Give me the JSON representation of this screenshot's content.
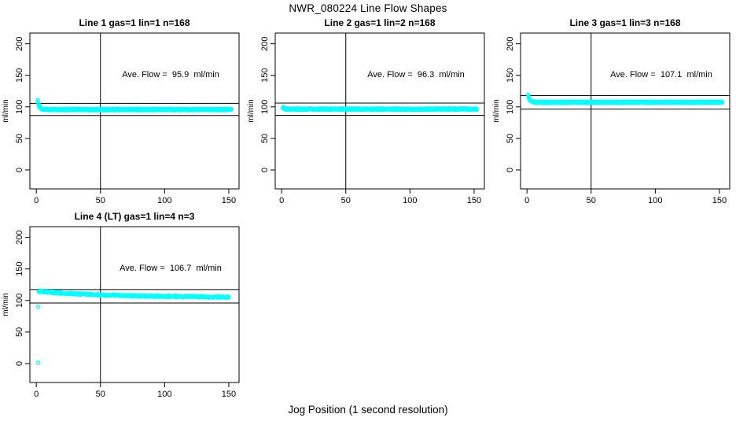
{
  "figure": {
    "title": "NWR_080224  Line Flow Shapes",
    "xlabel": "Jog Position (1 second resolution)",
    "background": "#FFFFFF",
    "point_color": "#00FFFF",
    "axis_color": "#000000"
  },
  "chart_data": [
    {
      "type": "scatter",
      "title": "Line 1 gas=1 lin=1 n=168",
      "annotation": "Ave. Flow =  95.9  ml/min",
      "ave_flow_ml_min": 95.9,
      "n": 168,
      "ylabel": "ml/min",
      "xlim": [
        -5,
        158
      ],
      "ylim": [
        -30,
        217
      ],
      "xticks": [
        0,
        50,
        100,
        150
      ],
      "yticks": [
        0,
        50,
        100,
        150,
        200
      ],
      "vline_x": 50,
      "hlines": [
        105.5,
        86.3
      ],
      "series_profile": {
        "x_start": 1,
        "x_end": 152,
        "step": 0.5,
        "passes": 3,
        "start_value": 110,
        "settle_value": 95.7,
        "decay_tau": 1.4,
        "jitter": 1.4
      },
      "outliers": []
    },
    {
      "type": "scatter",
      "title": "Line 2 gas=1 lin=2 n=168",
      "annotation": "Ave. Flow =  96.3  ml/min",
      "ave_flow_ml_min": 96.3,
      "n": 168,
      "ylabel": "ml/min",
      "xlim": [
        -5,
        158
      ],
      "ylim": [
        -30,
        217
      ],
      "xticks": [
        0,
        50,
        100,
        150
      ],
      "yticks": [
        0,
        50,
        100,
        150,
        200
      ],
      "vline_x": 50,
      "hlines": [
        105.9,
        86.7
      ],
      "series_profile": {
        "x_start": 1,
        "x_end": 152,
        "step": 0.5,
        "passes": 3,
        "start_value": 99.5,
        "settle_value": 96.3,
        "decay_tau": 0.9,
        "jitter": 1.4
      },
      "outliers": []
    },
    {
      "type": "scatter",
      "title": "Line 3 gas=1 lin=3 n=168",
      "annotation": "Ave. Flow =  107.1  ml/min",
      "ave_flow_ml_min": 107.1,
      "n": 168,
      "ylabel": "ml/min",
      "xlim": [
        -5,
        158
      ],
      "ylim": [
        -30,
        217
      ],
      "xticks": [
        0,
        50,
        100,
        150
      ],
      "yticks": [
        0,
        50,
        100,
        150,
        200
      ],
      "vline_x": 50,
      "hlines": [
        117.8,
        96.4
      ],
      "series_profile": {
        "x_start": 1,
        "x_end": 152,
        "step": 0.5,
        "passes": 3,
        "start_value": 118.5,
        "settle_value": 107.2,
        "decay_tau": 1.3,
        "jitter": 1.2
      },
      "outliers": []
    },
    {
      "type": "scatter",
      "title": "Line 4 (LT) gas=1 lin=4 n=3",
      "annotation": "Ave. Flow =  106.7  ml/min",
      "ave_flow_ml_min": 106.7,
      "n": 3,
      "ylabel": "ml/min",
      "xlim": [
        -5,
        158
      ],
      "ylim": [
        -30,
        217
      ],
      "xticks": [
        0,
        50,
        100,
        150
      ],
      "yticks": [
        0,
        50,
        100,
        150,
        200
      ],
      "vline_x": 50,
      "hlines": [
        117.4,
        96.0
      ],
      "series_profile": {
        "x_start": 2,
        "x_end": 150,
        "step": 0.8,
        "passes": 2,
        "start_value": 114.5,
        "settle_value": 104.9,
        "decay_tau": 55,
        "jitter": 1.5
      },
      "outliers": [
        [
          1.5,
          90
        ],
        [
          1.5,
          1.5
        ]
      ]
    }
  ]
}
